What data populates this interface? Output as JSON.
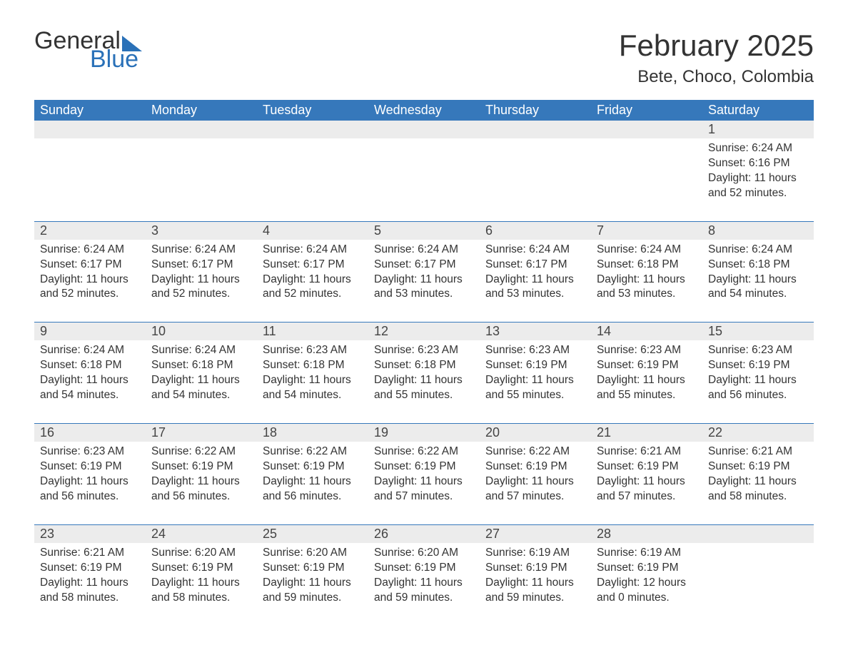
{
  "logo": {
    "text1": "General",
    "text2": "Blue",
    "color_dark": "#333333",
    "color_blue": "#2a71b8"
  },
  "title": "February 2025",
  "location": "Bete, Choco, Colombia",
  "theme": {
    "header_bg": "#3678bb",
    "header_fg": "#ffffff",
    "daynum_bg": "#ececec",
    "separator": "#3678bb",
    "text": "#333333",
    "font_title": 42,
    "font_location": 24,
    "font_dayheader": 18,
    "font_body": 15.5
  },
  "day_headers": [
    "Sunday",
    "Monday",
    "Tuesday",
    "Wednesday",
    "Thursday",
    "Friday",
    "Saturday"
  ],
  "weeks": [
    [
      null,
      null,
      null,
      null,
      null,
      null,
      {
        "n": "1",
        "sunrise": "6:24 AM",
        "sunset": "6:16 PM",
        "daylight": "11 hours and 52 minutes."
      }
    ],
    [
      {
        "n": "2",
        "sunrise": "6:24 AM",
        "sunset": "6:17 PM",
        "daylight": "11 hours and 52 minutes."
      },
      {
        "n": "3",
        "sunrise": "6:24 AM",
        "sunset": "6:17 PM",
        "daylight": "11 hours and 52 minutes."
      },
      {
        "n": "4",
        "sunrise": "6:24 AM",
        "sunset": "6:17 PM",
        "daylight": "11 hours and 52 minutes."
      },
      {
        "n": "5",
        "sunrise": "6:24 AM",
        "sunset": "6:17 PM",
        "daylight": "11 hours and 53 minutes."
      },
      {
        "n": "6",
        "sunrise": "6:24 AM",
        "sunset": "6:17 PM",
        "daylight": "11 hours and 53 minutes."
      },
      {
        "n": "7",
        "sunrise": "6:24 AM",
        "sunset": "6:18 PM",
        "daylight": "11 hours and 53 minutes."
      },
      {
        "n": "8",
        "sunrise": "6:24 AM",
        "sunset": "6:18 PM",
        "daylight": "11 hours and 54 minutes."
      }
    ],
    [
      {
        "n": "9",
        "sunrise": "6:24 AM",
        "sunset": "6:18 PM",
        "daylight": "11 hours and 54 minutes."
      },
      {
        "n": "10",
        "sunrise": "6:24 AM",
        "sunset": "6:18 PM",
        "daylight": "11 hours and 54 minutes."
      },
      {
        "n": "11",
        "sunrise": "6:23 AM",
        "sunset": "6:18 PM",
        "daylight": "11 hours and 54 minutes."
      },
      {
        "n": "12",
        "sunrise": "6:23 AM",
        "sunset": "6:18 PM",
        "daylight": "11 hours and 55 minutes."
      },
      {
        "n": "13",
        "sunrise": "6:23 AM",
        "sunset": "6:19 PM",
        "daylight": "11 hours and 55 minutes."
      },
      {
        "n": "14",
        "sunrise": "6:23 AM",
        "sunset": "6:19 PM",
        "daylight": "11 hours and 55 minutes."
      },
      {
        "n": "15",
        "sunrise": "6:23 AM",
        "sunset": "6:19 PM",
        "daylight": "11 hours and 56 minutes."
      }
    ],
    [
      {
        "n": "16",
        "sunrise": "6:23 AM",
        "sunset": "6:19 PM",
        "daylight": "11 hours and 56 minutes."
      },
      {
        "n": "17",
        "sunrise": "6:22 AM",
        "sunset": "6:19 PM",
        "daylight": "11 hours and 56 minutes."
      },
      {
        "n": "18",
        "sunrise": "6:22 AM",
        "sunset": "6:19 PM",
        "daylight": "11 hours and 56 minutes."
      },
      {
        "n": "19",
        "sunrise": "6:22 AM",
        "sunset": "6:19 PM",
        "daylight": "11 hours and 57 minutes."
      },
      {
        "n": "20",
        "sunrise": "6:22 AM",
        "sunset": "6:19 PM",
        "daylight": "11 hours and 57 minutes."
      },
      {
        "n": "21",
        "sunrise": "6:21 AM",
        "sunset": "6:19 PM",
        "daylight": "11 hours and 57 minutes."
      },
      {
        "n": "22",
        "sunrise": "6:21 AM",
        "sunset": "6:19 PM",
        "daylight": "11 hours and 58 minutes."
      }
    ],
    [
      {
        "n": "23",
        "sunrise": "6:21 AM",
        "sunset": "6:19 PM",
        "daylight": "11 hours and 58 minutes."
      },
      {
        "n": "24",
        "sunrise": "6:20 AM",
        "sunset": "6:19 PM",
        "daylight": "11 hours and 58 minutes."
      },
      {
        "n": "25",
        "sunrise": "6:20 AM",
        "sunset": "6:19 PM",
        "daylight": "11 hours and 59 minutes."
      },
      {
        "n": "26",
        "sunrise": "6:20 AM",
        "sunset": "6:19 PM",
        "daylight": "11 hours and 59 minutes."
      },
      {
        "n": "27",
        "sunrise": "6:19 AM",
        "sunset": "6:19 PM",
        "daylight": "11 hours and 59 minutes."
      },
      {
        "n": "28",
        "sunrise": "6:19 AM",
        "sunset": "6:19 PM",
        "daylight": "12 hours and 0 minutes."
      },
      null
    ]
  ],
  "labels": {
    "sunrise": "Sunrise: ",
    "sunset": "Sunset: ",
    "daylight": "Daylight: "
  }
}
